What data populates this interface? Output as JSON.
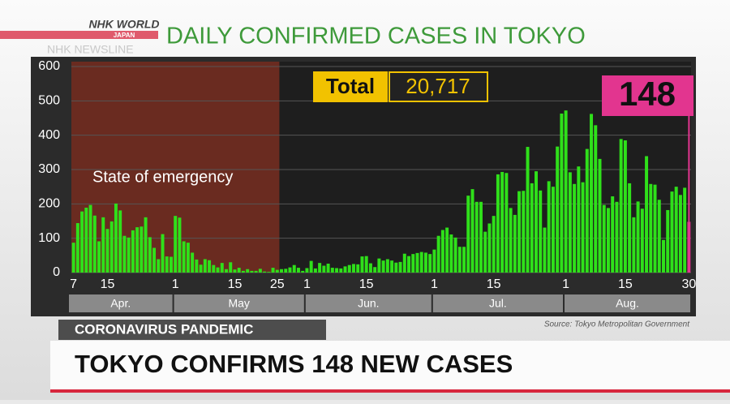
{
  "brand": "NHK WORLD",
  "brand_sub": "JAPAN",
  "program": "NHK NEWSLINE",
  "chart_data": {
    "type": "bar",
    "title": "DAILY CONFIRMED CASES IN TOKYO",
    "total_label": "Total",
    "total": "20,717",
    "emergency_label": "State of emergency",
    "source": "Source: Tokyo Metropolitan Government",
    "color": "#2fe01a",
    "highlight_color": "#e2358f",
    "emergency_color": "#6a2b20",
    "ylim": [
      0,
      600
    ],
    "yticks": [
      0,
      100,
      200,
      300,
      400,
      500,
      600
    ],
    "grid": true,
    "month_labels": [
      "Apr.",
      "May",
      "Jun.",
      "Jul.",
      "Aug."
    ],
    "categories": [
      "7",
      null,
      null,
      null,
      null,
      null,
      null,
      null,
      "15",
      null,
      null,
      null,
      null,
      null,
      null,
      null,
      null,
      null,
      null,
      null,
      null,
      null,
      null,
      null,
      "1",
      null,
      null,
      null,
      null,
      null,
      null,
      null,
      null,
      null,
      null,
      null,
      null,
      null,
      "15",
      null,
      null,
      null,
      null,
      null,
      null,
      null,
      null,
      null,
      "25",
      null,
      null,
      null,
      null,
      null,
      null,
      "1",
      null,
      null,
      null,
      null,
      null,
      null,
      null,
      null,
      null,
      null,
      null,
      null,
      null,
      "15",
      null,
      null,
      null,
      null,
      null,
      null,
      null,
      null,
      null,
      null,
      null,
      null,
      null,
      null,
      null,
      "1",
      null,
      null,
      null,
      null,
      null,
      null,
      null,
      null,
      null,
      null,
      null,
      null,
      null,
      "15",
      null,
      null,
      null,
      null,
      null,
      null,
      null,
      null,
      null,
      null,
      null,
      null,
      null,
      null,
      null,
      null,
      "1",
      null,
      null,
      null,
      null,
      null,
      null,
      null,
      null,
      null,
      null,
      null,
      null,
      null,
      "15",
      null,
      null,
      null,
      null,
      null,
      null,
      null,
      null,
      null,
      null,
      null,
      null,
      null,
      null,
      "30"
    ],
    "values": [
      87,
      144,
      178,
      189,
      197,
      166,
      91,
      161,
      127,
      149,
      201,
      181,
      107,
      102,
      123,
      132,
      134,
      161,
      103,
      72,
      39,
      112,
      47,
      46,
      165,
      160,
      91,
      87,
      58,
      38,
      23,
      39,
      36,
      22,
      15,
      28,
      10,
      30,
      9,
      14,
      5,
      10,
      5,
      5,
      11,
      3,
      2,
      14,
      8,
      10,
      11,
      15,
      22,
      14,
      5,
      13,
      34,
      12,
      28,
      20,
      26,
      14,
      13,
      12,
      18,
      22,
      25,
      24,
      47,
      48,
      27,
      16,
      41,
      35,
      39,
      35,
      29,
      31,
      55,
      48,
      54,
      57,
      60,
      58,
      54,
      67,
      107,
      124,
      131,
      111,
      102,
      75,
      75,
      224,
      243,
      206,
      206,
      119,
      143,
      165,
      286,
      293,
      290,
      188,
      168,
      237,
      238,
      366,
      260,
      295,
      239,
      131,
      266,
      250,
      367,
      463,
      472,
      292,
      258,
      309,
      263,
      360,
      462,
      429,
      331,
      197,
      188,
      222,
      206,
      389,
      385,
      260,
      161,
      207,
      186,
      339,
      258,
      256,
      212,
      95,
      182,
      236,
      250,
      226,
      247,
      148
    ]
  },
  "section": "CORONAVIRUS PANDEMIC",
  "headline": "TOKYO CONFIRMS 148 NEW CASES"
}
